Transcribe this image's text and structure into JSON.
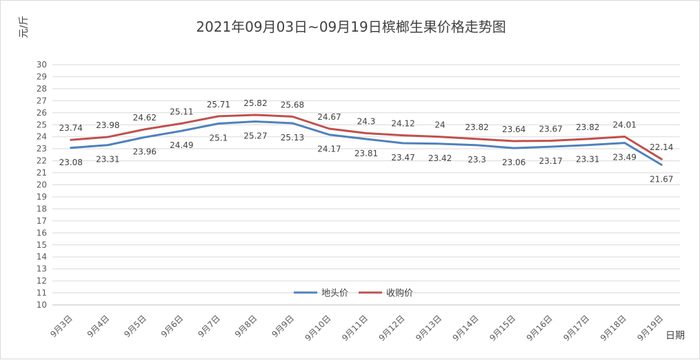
{
  "chart_data": {
    "type": "line",
    "title": "2021年09月03日~09月19日槟榔生果价格走势图",
    "ylabel": "元/斤",
    "xlabel": "日期",
    "ylim": [
      10,
      30
    ],
    "ytick_step": 1,
    "grid": true,
    "legend_position": "bottom-center",
    "categories": [
      "9月3日",
      "9月4日",
      "9月5日",
      "9月6日",
      "9月7日",
      "9月8日",
      "9月9日",
      "9月10日",
      "9月11日",
      "9月12日",
      "9月13日",
      "9月14日",
      "9月15日",
      "9月16日",
      "9月17日",
      "9月18日",
      "9月19日"
    ],
    "series": [
      {
        "name": "地头价",
        "color": "#4f81bd",
        "values": [
          23.08,
          23.31,
          23.96,
          24.49,
          25.1,
          25.27,
          25.13,
          24.17,
          23.81,
          23.47,
          23.42,
          23.3,
          23.06,
          23.17,
          23.31,
          23.49,
          21.67
        ],
        "labels": [
          "23.08",
          "23.31",
          "23.96",
          "24.49",
          "25.1",
          "25.27",
          "25.13",
          "24.17",
          "23.81",
          "23.47",
          "23.42",
          "23.3",
          "23.06",
          "23.17",
          "23.31",
          "23.49",
          "21.67"
        ]
      },
      {
        "name": "收购价",
        "color": "#c0504d",
        "values": [
          23.74,
          23.98,
          24.62,
          25.11,
          25.71,
          25.82,
          25.68,
          24.67,
          24.3,
          24.12,
          24,
          23.82,
          23.64,
          23.67,
          23.82,
          24.01,
          22.14
        ],
        "labels": [
          "23.74",
          "23.98",
          "24.62",
          "25.11",
          "25.71",
          "25.82",
          "25.68",
          "24.67",
          "24.3",
          "24.12",
          "24",
          "23.82",
          "23.64",
          "23.67",
          "23.82",
          "24.01",
          "22.14"
        ]
      }
    ]
  }
}
